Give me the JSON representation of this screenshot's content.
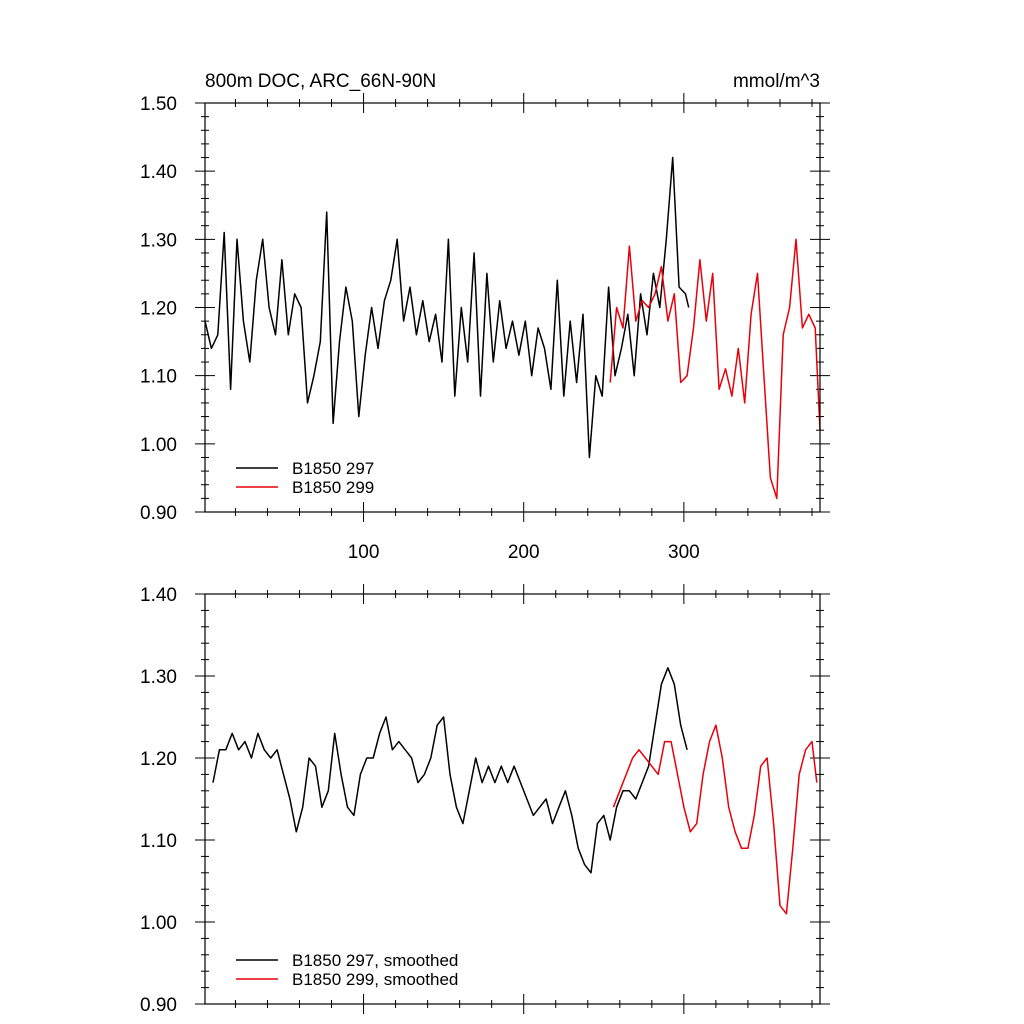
{
  "chart_data": [
    {
      "type": "line",
      "title": "800m DOC, ARC_66N-90N",
      "units": "mmol/m^3",
      "xlim": [
        1,
        385
      ],
      "ylim": [
        0.9,
        1.5
      ],
      "yticks": [
        "0.90",
        "1.00",
        "1.10",
        "1.20",
        "1.30",
        "1.40",
        "1.50"
      ],
      "xticks": [
        "100",
        "200",
        "300"
      ],
      "grid": false,
      "legend_position": "bottom-left",
      "series": [
        {
          "name": "B1850 297",
          "color": "#000000",
          "x": [
            1,
            5,
            9,
            13,
            17,
            21,
            25,
            29,
            33,
            37,
            41,
            45,
            49,
            53,
            57,
            61,
            65,
            69,
            73,
            77,
            81,
            85,
            89,
            93,
            97,
            101,
            105,
            109,
            113,
            117,
            121,
            125,
            129,
            133,
            137,
            141,
            145,
            149,
            153,
            157,
            161,
            165,
            169,
            173,
            177,
            181,
            185,
            189,
            193,
            197,
            201,
            205,
            209,
            213,
            217,
            221,
            225,
            229,
            233,
            237,
            241,
            245,
            249,
            253,
            257,
            261,
            265,
            269,
            273,
            277,
            281,
            285,
            289,
            293,
            297,
            301,
            303
          ],
          "y": [
            1.18,
            1.14,
            1.16,
            1.31,
            1.08,
            1.3,
            1.18,
            1.12,
            1.24,
            1.3,
            1.2,
            1.16,
            1.27,
            1.16,
            1.22,
            1.2,
            1.06,
            1.1,
            1.15,
            1.34,
            1.03,
            1.15,
            1.23,
            1.18,
            1.04,
            1.13,
            1.2,
            1.14,
            1.21,
            1.24,
            1.3,
            1.18,
            1.23,
            1.16,
            1.21,
            1.15,
            1.19,
            1.12,
            1.3,
            1.07,
            1.2,
            1.12,
            1.28,
            1.07,
            1.25,
            1.12,
            1.21,
            1.14,
            1.18,
            1.13,
            1.18,
            1.1,
            1.17,
            1.14,
            1.08,
            1.24,
            1.07,
            1.18,
            1.09,
            1.19,
            0.98,
            1.1,
            1.07,
            1.23,
            1.1,
            1.14,
            1.19,
            1.1,
            1.22,
            1.16,
            1.25,
            1.2,
            1.3,
            1.42,
            1.23,
            1.22,
            1.2
          ]
        },
        {
          "name": "B1850 299",
          "color": "#e8000b",
          "x": [
            254,
            258,
            262,
            266,
            270,
            274,
            278,
            282,
            286,
            290,
            294,
            298,
            302,
            306,
            310,
            314,
            318,
            322,
            326,
            330,
            334,
            338,
            342,
            346,
            350,
            354,
            358,
            362,
            366,
            370,
            374,
            378,
            382,
            385
          ],
          "y": [
            1.09,
            1.2,
            1.17,
            1.29,
            1.18,
            1.21,
            1.2,
            1.22,
            1.26,
            1.18,
            1.22,
            1.09,
            1.1,
            1.17,
            1.27,
            1.18,
            1.25,
            1.08,
            1.11,
            1.07,
            1.14,
            1.06,
            1.19,
            1.25,
            1.1,
            0.95,
            0.92,
            1.16,
            1.2,
            1.3,
            1.17,
            1.19,
            1.17,
            1.02
          ]
        }
      ]
    },
    {
      "type": "line",
      "title": "",
      "xlim": [
        1,
        385
      ],
      "ylim": [
        0.9,
        1.4
      ],
      "yticks": [
        "0.90",
        "1.00",
        "1.10",
        "1.20",
        "1.30",
        "1.40"
      ],
      "xticks": [],
      "grid": false,
      "legend_position": "bottom-left",
      "series": [
        {
          "name": "B1850 297, smoothed",
          "color": "#000000",
          "x": [
            6,
            10,
            14,
            18,
            22,
            26,
            30,
            34,
            38,
            42,
            46,
            50,
            54,
            58,
            62,
            66,
            70,
            74,
            78,
            82,
            86,
            90,
            94,
            98,
            102,
            106,
            110,
            114,
            118,
            122,
            126,
            130,
            134,
            138,
            142,
            146,
            150,
            154,
            158,
            162,
            166,
            170,
            174,
            178,
            182,
            186,
            190,
            194,
            198,
            202,
            206,
            210,
            214,
            218,
            222,
            226,
            230,
            234,
            238,
            242,
            246,
            250,
            254,
            258,
            262,
            266,
            270,
            274,
            278,
            282,
            286,
            290,
            294,
            298,
            302
          ],
          "y": [
            1.17,
            1.21,
            1.21,
            1.23,
            1.21,
            1.22,
            1.2,
            1.23,
            1.21,
            1.2,
            1.21,
            1.18,
            1.15,
            1.11,
            1.14,
            1.2,
            1.19,
            1.14,
            1.16,
            1.23,
            1.18,
            1.14,
            1.13,
            1.18,
            1.2,
            1.2,
            1.23,
            1.25,
            1.21,
            1.22,
            1.21,
            1.2,
            1.17,
            1.18,
            1.2,
            1.24,
            1.25,
            1.18,
            1.14,
            1.12,
            1.16,
            1.2,
            1.17,
            1.19,
            1.17,
            1.19,
            1.17,
            1.19,
            1.17,
            1.15,
            1.13,
            1.14,
            1.15,
            1.12,
            1.14,
            1.16,
            1.13,
            1.09,
            1.07,
            1.06,
            1.12,
            1.13,
            1.1,
            1.14,
            1.16,
            1.16,
            1.15,
            1.17,
            1.19,
            1.24,
            1.29,
            1.31,
            1.29,
            1.24,
            1.21
          ]
        },
        {
          "name": "B1850 299, smoothed",
          "color": "#e8000b",
          "x": [
            256,
            260,
            264,
            268,
            272,
            276,
            280,
            284,
            288,
            292,
            296,
            300,
            304,
            308,
            312,
            316,
            320,
            324,
            328,
            332,
            336,
            340,
            344,
            348,
            352,
            356,
            360,
            364,
            368,
            372,
            376,
            380,
            383
          ],
          "y": [
            1.14,
            1.16,
            1.18,
            1.2,
            1.21,
            1.2,
            1.19,
            1.18,
            1.22,
            1.22,
            1.18,
            1.14,
            1.11,
            1.12,
            1.18,
            1.22,
            1.24,
            1.2,
            1.14,
            1.11,
            1.09,
            1.09,
            1.13,
            1.19,
            1.2,
            1.12,
            1.02,
            1.01,
            1.09,
            1.18,
            1.21,
            1.22,
            1.17
          ]
        }
      ]
    }
  ]
}
